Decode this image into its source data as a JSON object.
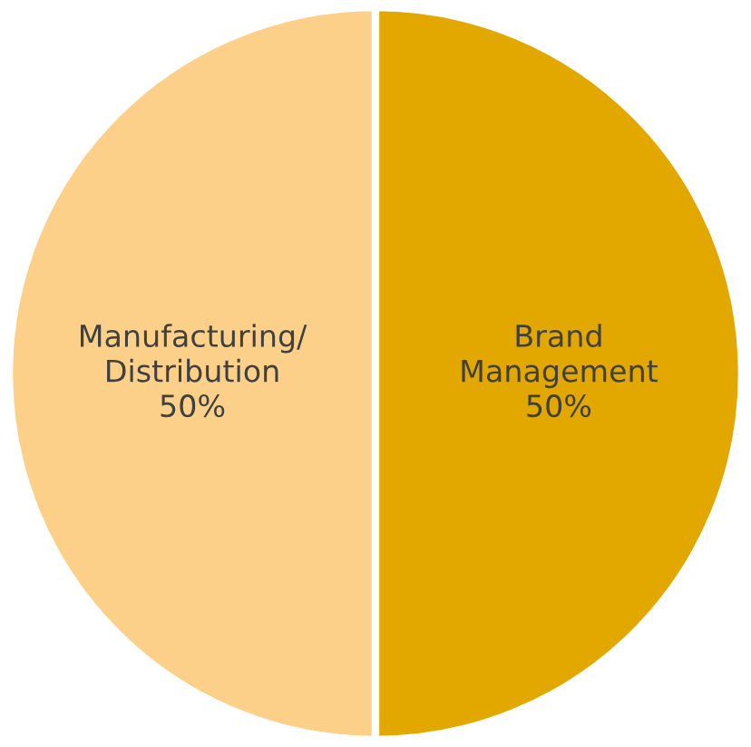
{
  "chart_data": {
    "type": "pie",
    "categories": [
      "Manufacturing/Distribution",
      "Brand Management"
    ],
    "values": [
      50,
      50
    ],
    "colors": [
      "#fcd088",
      "#e3a800"
    ],
    "value_labels": [
      "50%",
      "50%"
    ]
  }
}
